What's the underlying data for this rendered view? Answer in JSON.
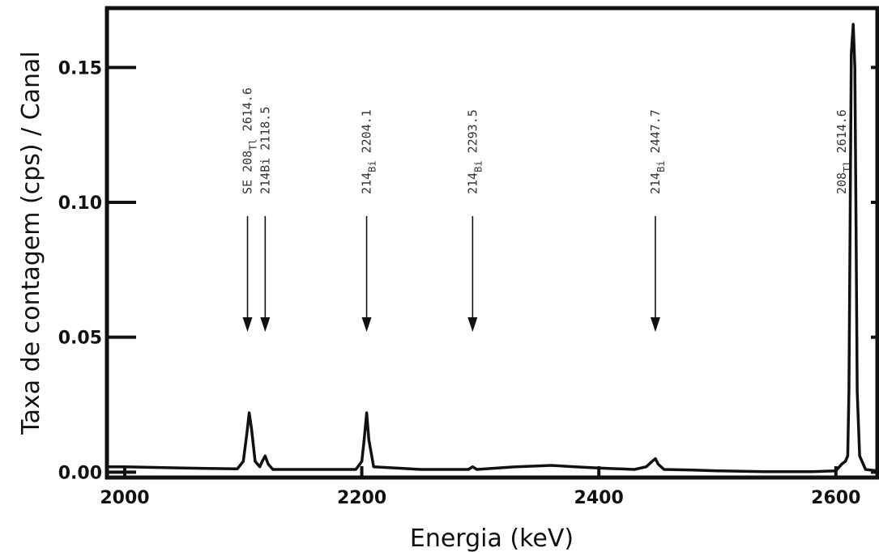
{
  "chart_data": {
    "type": "line",
    "title": "",
    "xlabel": "Energia (keV)",
    "ylabel": "Taxa de contagem (cps) / Canal",
    "xlim": [
      1985,
      2635
    ],
    "ylim": [
      -0.002,
      0.172
    ],
    "xticks": [
      2000,
      2200,
      2400,
      2600
    ],
    "xtick_labels": [
      "2000",
      "2200",
      "2400",
      "2600"
    ],
    "yticks": [
      0.0,
      0.05,
      0.1,
      0.15
    ],
    "ytick_labels": [
      "0.00",
      "0.05",
      "0.10",
      "0.15"
    ],
    "grid": false,
    "legend": "none",
    "series": [
      {
        "x": [
          1985,
          2000,
          2050,
          2095,
          2100,
          2103,
          2105,
          2107,
          2110,
          2114,
          2116,
          2118.5,
          2121,
          2125,
          2150,
          2195,
          2200,
          2202,
          2204.1,
          2206,
          2210,
          2250,
          2290,
          2293.5,
          2297,
          2330,
          2360,
          2380,
          2400,
          2430,
          2440,
          2445,
          2447.7,
          2450,
          2455,
          2480,
          2500,
          2540,
          2580,
          2600,
          2605,
          2608,
          2610,
          2611,
          2612,
          2613,
          2614.6,
          2616,
          2617,
          2618,
          2620,
          2625,
          2635
        ],
        "y": [
          0.002,
          0.002,
          0.0015,
          0.0012,
          0.004,
          0.014,
          0.022,
          0.016,
          0.004,
          0.002,
          0.004,
          0.006,
          0.003,
          0.001,
          0.001,
          0.001,
          0.004,
          0.012,
          0.022,
          0.012,
          0.002,
          0.001,
          0.001,
          0.002,
          0.001,
          0.002,
          0.0025,
          0.002,
          0.0015,
          0.001,
          0.002,
          0.004,
          0.005,
          0.003,
          0.001,
          0.0008,
          0.0005,
          0.0002,
          0.0002,
          0.0005,
          0.003,
          0.004,
          0.006,
          0.03,
          0.09,
          0.155,
          0.166,
          0.15,
          0.09,
          0.03,
          0.006,
          0.001,
          0.0005
        ]
      }
    ],
    "annotations": [
      {
        "energy": 2103.6,
        "label": "SE 208",
        "sub": "Tl",
        "value": "2614.6"
      },
      {
        "energy": 2118.5,
        "label": "214Bi",
        "sub": "",
        "value": "2118.5"
      },
      {
        "energy": 2204.1,
        "label": "214",
        "sub": "Bi",
        "value": "2204.1"
      },
      {
        "energy": 2293.5,
        "label": "214",
        "sub": "Bi",
        "value": "2293.5"
      },
      {
        "energy": 2447.7,
        "label": "214",
        "sub": "Bi",
        "value": "2447.7"
      },
      {
        "energy": 2614.6,
        "label": "208",
        "sub": "Tl",
        "value": "2614.6"
      }
    ]
  }
}
